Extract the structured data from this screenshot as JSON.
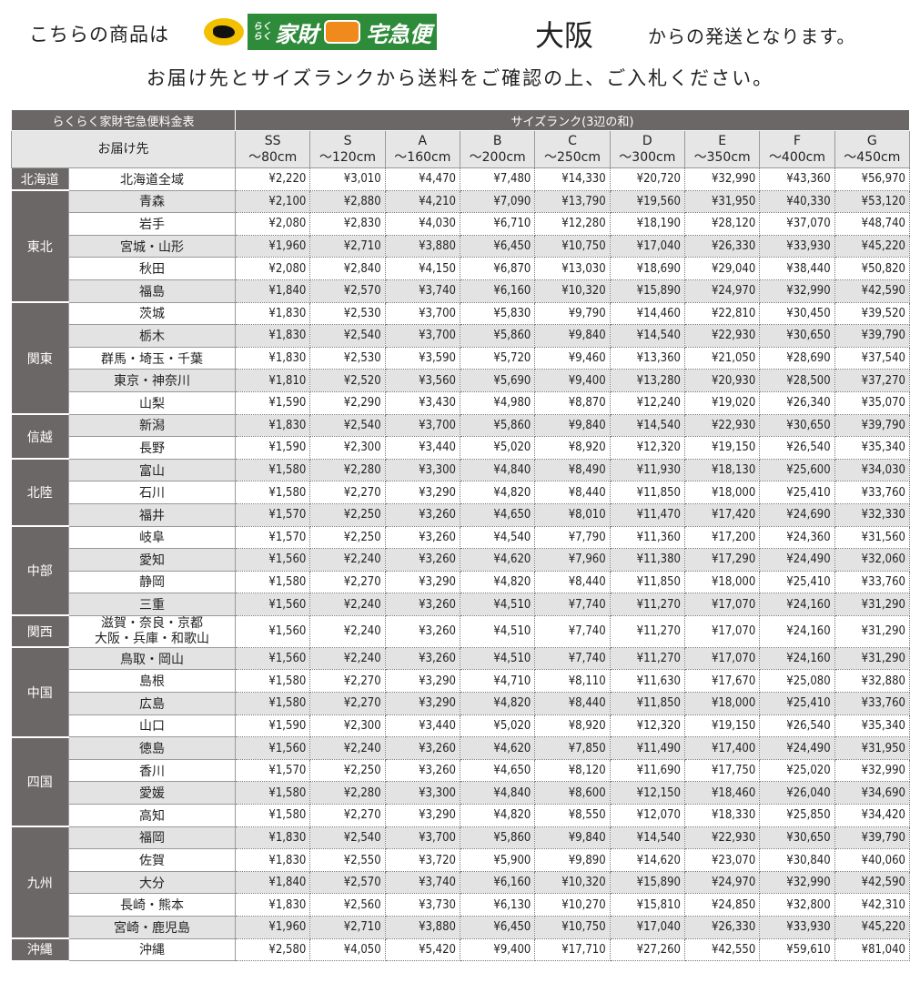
{
  "header": {
    "prefix": "こちらの商品は",
    "logo": {
      "kana": "らくらく",
      "kazai": "家財",
      "takkyubin": "宅急便"
    },
    "origin": "大阪",
    "suffix": "からの発送となります。",
    "subtitle": "お届け先とサイズランクから送料をご確認の上、ご入札ください。"
  },
  "table": {
    "title": "らくらく家財宅急便料金表",
    "size_heading": "サイズランク(3辺の和)",
    "dest_heading": "お届け先",
    "sizes": [
      {
        "rank": "SS",
        "range": "～80cm"
      },
      {
        "rank": "S",
        "range": "～120cm"
      },
      {
        "rank": "A",
        "range": "～160cm"
      },
      {
        "rank": "B",
        "range": "～200cm"
      },
      {
        "rank": "C",
        "range": "～250cm"
      },
      {
        "rank": "D",
        "range": "～300cm"
      },
      {
        "rank": "E",
        "range": "～350cm"
      },
      {
        "rank": "F",
        "range": "～400cm"
      },
      {
        "rank": "G",
        "range": "～450cm"
      }
    ],
    "regions": [
      {
        "name": "北海道",
        "rows": [
          {
            "dest": "北海道全域",
            "prices": [
              "¥2,220",
              "¥3,010",
              "¥4,470",
              "¥7,480",
              "¥14,330",
              "¥20,720",
              "¥32,990",
              "¥43,360",
              "¥56,970"
            ]
          }
        ]
      },
      {
        "name": "東北",
        "rows": [
          {
            "dest": "青森",
            "prices": [
              "¥2,100",
              "¥2,880",
              "¥4,210",
              "¥7,090",
              "¥13,790",
              "¥19,560",
              "¥31,950",
              "¥40,330",
              "¥53,120"
            ]
          },
          {
            "dest": "岩手",
            "prices": [
              "¥2,080",
              "¥2,830",
              "¥4,030",
              "¥6,710",
              "¥12,280",
              "¥18,190",
              "¥28,120",
              "¥37,070",
              "¥48,740"
            ]
          },
          {
            "dest": "宮城・山形",
            "prices": [
              "¥1,960",
              "¥2,710",
              "¥3,880",
              "¥6,450",
              "¥10,750",
              "¥17,040",
              "¥26,330",
              "¥33,930",
              "¥45,220"
            ]
          },
          {
            "dest": "秋田",
            "prices": [
              "¥2,080",
              "¥2,840",
              "¥4,150",
              "¥6,870",
              "¥13,030",
              "¥18,690",
              "¥29,040",
              "¥38,440",
              "¥50,820"
            ]
          },
          {
            "dest": "福島",
            "prices": [
              "¥1,840",
              "¥2,570",
              "¥3,740",
              "¥6,160",
              "¥10,320",
              "¥15,890",
              "¥24,970",
              "¥32,990",
              "¥42,590"
            ]
          }
        ]
      },
      {
        "name": "関東",
        "rows": [
          {
            "dest": "茨城",
            "prices": [
              "¥1,830",
              "¥2,530",
              "¥3,700",
              "¥5,830",
              "¥9,790",
              "¥14,460",
              "¥22,810",
              "¥30,450",
              "¥39,520"
            ]
          },
          {
            "dest": "栃木",
            "prices": [
              "¥1,830",
              "¥2,540",
              "¥3,700",
              "¥5,860",
              "¥9,840",
              "¥14,540",
              "¥22,930",
              "¥30,650",
              "¥39,790"
            ]
          },
          {
            "dest": "群馬・埼玉・千葉",
            "prices": [
              "¥1,830",
              "¥2,530",
              "¥3,590",
              "¥5,720",
              "¥9,460",
              "¥13,360",
              "¥21,050",
              "¥28,690",
              "¥37,540"
            ]
          },
          {
            "dest": "東京・神奈川",
            "prices": [
              "¥1,810",
              "¥2,520",
              "¥3,560",
              "¥5,690",
              "¥9,400",
              "¥13,280",
              "¥20,930",
              "¥28,500",
              "¥37,270"
            ]
          },
          {
            "dest": "山梨",
            "prices": [
              "¥1,590",
              "¥2,290",
              "¥3,430",
              "¥4,980",
              "¥8,870",
              "¥12,240",
              "¥19,020",
              "¥26,340",
              "¥35,070"
            ]
          }
        ]
      },
      {
        "name": "信越",
        "rows": [
          {
            "dest": "新潟",
            "prices": [
              "¥1,830",
              "¥2,540",
              "¥3,700",
              "¥5,860",
              "¥9,840",
              "¥14,540",
              "¥22,930",
              "¥30,650",
              "¥39,790"
            ]
          },
          {
            "dest": "長野",
            "prices": [
              "¥1,590",
              "¥2,300",
              "¥3,440",
              "¥5,020",
              "¥8,920",
              "¥12,320",
              "¥19,150",
              "¥26,540",
              "¥35,340"
            ]
          }
        ]
      },
      {
        "name": "北陸",
        "rows": [
          {
            "dest": "富山",
            "prices": [
              "¥1,580",
              "¥2,280",
              "¥3,300",
              "¥4,840",
              "¥8,490",
              "¥11,930",
              "¥18,130",
              "¥25,600",
              "¥34,030"
            ]
          },
          {
            "dest": "石川",
            "prices": [
              "¥1,580",
              "¥2,270",
              "¥3,290",
              "¥4,820",
              "¥8,440",
              "¥11,850",
              "¥18,000",
              "¥25,410",
              "¥33,760"
            ]
          },
          {
            "dest": "福井",
            "prices": [
              "¥1,570",
              "¥2,250",
              "¥3,260",
              "¥4,650",
              "¥8,010",
              "¥11,470",
              "¥17,420",
              "¥24,690",
              "¥32,330"
            ]
          }
        ]
      },
      {
        "name": "中部",
        "rows": [
          {
            "dest": "岐阜",
            "prices": [
              "¥1,570",
              "¥2,250",
              "¥3,260",
              "¥4,540",
              "¥7,790",
              "¥11,360",
              "¥17,200",
              "¥24,360",
              "¥31,560"
            ]
          },
          {
            "dest": "愛知",
            "prices": [
              "¥1,560",
              "¥2,240",
              "¥3,260",
              "¥4,620",
              "¥7,960",
              "¥11,380",
              "¥17,290",
              "¥24,490",
              "¥32,060"
            ]
          },
          {
            "dest": "静岡",
            "prices": [
              "¥1,580",
              "¥2,270",
              "¥3,290",
              "¥4,820",
              "¥8,440",
              "¥11,850",
              "¥18,000",
              "¥25,410",
              "¥33,760"
            ]
          },
          {
            "dest": "三重",
            "prices": [
              "¥1,560",
              "¥2,240",
              "¥3,260",
              "¥4,510",
              "¥7,740",
              "¥11,270",
              "¥17,070",
              "¥24,160",
              "¥31,290"
            ]
          }
        ]
      },
      {
        "name": "関西",
        "rows": [
          {
            "dest": "滋賀・奈良・京都\n大阪・兵庫・和歌山",
            "prices": [
              "¥1,560",
              "¥2,240",
              "¥3,260",
              "¥4,510",
              "¥7,740",
              "¥11,270",
              "¥17,070",
              "¥24,160",
              "¥31,290"
            ]
          }
        ]
      },
      {
        "name": "中国",
        "rows": [
          {
            "dest": "鳥取・岡山",
            "prices": [
              "¥1,560",
              "¥2,240",
              "¥3,260",
              "¥4,510",
              "¥7,740",
              "¥11,270",
              "¥17,070",
              "¥24,160",
              "¥31,290"
            ]
          },
          {
            "dest": "島根",
            "prices": [
              "¥1,580",
              "¥2,270",
              "¥3,290",
              "¥4,710",
              "¥8,110",
              "¥11,630",
              "¥17,670",
              "¥25,080",
              "¥32,880"
            ]
          },
          {
            "dest": "広島",
            "prices": [
              "¥1,580",
              "¥2,270",
              "¥3,290",
              "¥4,820",
              "¥8,440",
              "¥11,850",
              "¥18,000",
              "¥25,410",
              "¥33,760"
            ]
          },
          {
            "dest": "山口",
            "prices": [
              "¥1,590",
              "¥2,300",
              "¥3,440",
              "¥5,020",
              "¥8,920",
              "¥12,320",
              "¥19,150",
              "¥26,540",
              "¥35,340"
            ]
          }
        ]
      },
      {
        "name": "四国",
        "rows": [
          {
            "dest": "徳島",
            "prices": [
              "¥1,560",
              "¥2,240",
              "¥3,260",
              "¥4,620",
              "¥7,850",
              "¥11,490",
              "¥17,400",
              "¥24,490",
              "¥31,950"
            ]
          },
          {
            "dest": "香川",
            "prices": [
              "¥1,570",
              "¥2,250",
              "¥3,260",
              "¥4,650",
              "¥8,120",
              "¥11,690",
              "¥17,750",
              "¥25,020",
              "¥32,990"
            ]
          },
          {
            "dest": "愛媛",
            "prices": [
              "¥1,580",
              "¥2,280",
              "¥3,300",
              "¥4,840",
              "¥8,600",
              "¥12,150",
              "¥18,460",
              "¥26,040",
              "¥34,690"
            ]
          },
          {
            "dest": "高知",
            "prices": [
              "¥1,580",
              "¥2,270",
              "¥3,290",
              "¥4,820",
              "¥8,550",
              "¥12,070",
              "¥18,330",
              "¥25,850",
              "¥34,420"
            ]
          }
        ]
      },
      {
        "name": "九州",
        "rows": [
          {
            "dest": "福岡",
            "prices": [
              "¥1,830",
              "¥2,540",
              "¥3,700",
              "¥5,860",
              "¥9,840",
              "¥14,540",
              "¥22,930",
              "¥30,650",
              "¥39,790"
            ]
          },
          {
            "dest": "佐賀",
            "prices": [
              "¥1,830",
              "¥2,550",
              "¥3,720",
              "¥5,900",
              "¥9,890",
              "¥14,620",
              "¥23,070",
              "¥30,840",
              "¥40,060"
            ]
          },
          {
            "dest": "大分",
            "prices": [
              "¥1,840",
              "¥2,570",
              "¥3,740",
              "¥6,160",
              "¥10,320",
              "¥15,890",
              "¥24,970",
              "¥32,990",
              "¥42,590"
            ]
          },
          {
            "dest": "長崎・熊本",
            "prices": [
              "¥1,830",
              "¥2,560",
              "¥3,730",
              "¥6,130",
              "¥10,270",
              "¥15,810",
              "¥24,850",
              "¥32,800",
              "¥42,310"
            ]
          },
          {
            "dest": "宮崎・鹿児島",
            "prices": [
              "¥1,960",
              "¥2,710",
              "¥3,880",
              "¥6,450",
              "¥10,750",
              "¥17,040",
              "¥26,330",
              "¥33,930",
              "¥45,220"
            ]
          }
        ]
      },
      {
        "name": "沖縄",
        "rows": [
          {
            "dest": "沖縄",
            "prices": [
              "¥2,580",
              "¥4,050",
              "¥5,420",
              "¥9,400",
              "¥17,710",
              "¥27,260",
              "¥42,550",
              "¥59,610",
              "¥81,040"
            ]
          }
        ]
      }
    ]
  }
}
